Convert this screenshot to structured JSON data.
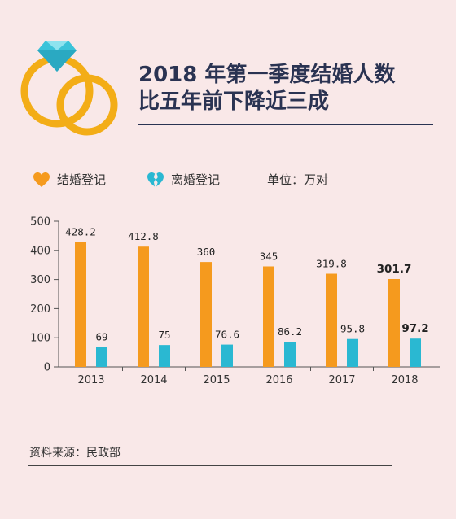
{
  "title": [
    "2018 年第一季度结婚人数",
    "比五年前下降近三成"
  ],
  "legend": [
    {
      "label": "结婚登记",
      "color": "#f59a1e",
      "icon": "heart-icon"
    },
    {
      "label": "离婚登记",
      "color": "#2ab8d2",
      "icon": "broken-heart-icon"
    }
  ],
  "unit": "单位：万对",
  "source": "资料来源：民政部",
  "logo_icon": "diamond-rings-icon",
  "chart_data": {
    "type": "bar",
    "categories": [
      "2013",
      "2014",
      "2015",
      "2016",
      "2017",
      "2018"
    ],
    "series": [
      {
        "name": "结婚登记",
        "values": [
          428.2,
          412.8,
          360,
          345,
          319.8,
          301.7
        ],
        "labels": [
          "428.2",
          "412.8",
          "360",
          "345",
          "319.8",
          "301.7"
        ],
        "color": "#f59a1e"
      },
      {
        "name": "离婚登记",
        "values": [
          69,
          75,
          76.6,
          86.2,
          95.8,
          97.2
        ],
        "labels": [
          "69",
          "75",
          "76.6",
          "86.2",
          "95.8",
          "97.2"
        ],
        "color": "#2ab8d2"
      }
    ],
    "ylim": [
      0,
      500
    ],
    "yticks": [
      0,
      100,
      200,
      300,
      400,
      500
    ],
    "highlight_category": "2018"
  }
}
